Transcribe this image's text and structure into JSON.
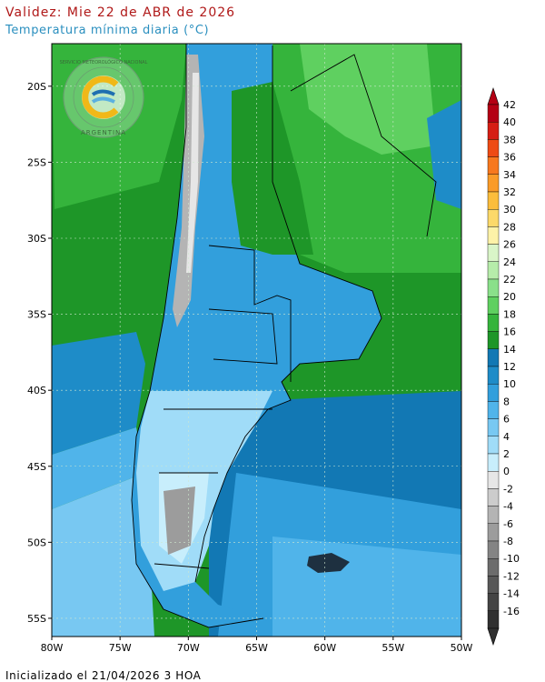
{
  "header": {
    "validity": "Validez: Mie 22 de ABR de 2026",
    "variable": "Temperatura mínima diaria (°C)"
  },
  "footer": {
    "initialized": "Inicializado el 21/04/2026 3 HOA"
  },
  "logo": {
    "ring_text_top": "SERVICIO METEOROLÓGICO NACIONAL",
    "ring_text_bottom": "ARGENTINA",
    "icon": "smn-logo"
  },
  "axes": {
    "lat_ticks": [
      {
        "lat": -20,
        "label": "20S"
      },
      {
        "lat": -25,
        "label": "25S"
      },
      {
        "lat": -30,
        "label": "30S"
      },
      {
        "lat": -35,
        "label": "35S"
      },
      {
        "lat": -40,
        "label": "40S"
      },
      {
        "lat": -45,
        "label": "45S"
      },
      {
        "lat": -50,
        "label": "50S"
      },
      {
        "lat": -55,
        "label": "55S"
      }
    ],
    "lon_ticks": [
      {
        "lon": -80,
        "label": "80W"
      },
      {
        "lon": -75,
        "label": "75W"
      },
      {
        "lon": -70,
        "label": "70W"
      },
      {
        "lon": -65,
        "label": "65W"
      },
      {
        "lon": -60,
        "label": "60W"
      },
      {
        "lon": -55,
        "label": "55W"
      },
      {
        "lon": -50,
        "label": "50W"
      }
    ]
  },
  "colorbar": {
    "levels": [
      {
        "label": "42",
        "color": "#b40014"
      },
      {
        "label": "40",
        "color": "#d61e14"
      },
      {
        "label": "38",
        "color": "#ee4b14"
      },
      {
        "label": "36",
        "color": "#f7781e"
      },
      {
        "label": "34",
        "color": "#fa9b28"
      },
      {
        "label": "32",
        "color": "#fbbd3c"
      },
      {
        "label": "30",
        "color": "#fcd96a"
      },
      {
        "label": "28",
        "color": "#fdf2a8"
      },
      {
        "label": "26",
        "color": "#d9f5c8"
      },
      {
        "label": "24",
        "color": "#b6ecaa"
      },
      {
        "label": "22",
        "color": "#8ae08a"
      },
      {
        "label": "20",
        "color": "#5fd060"
      },
      {
        "label": "18",
        "color": "#35b43c"
      },
      {
        "label": "16",
        "color": "#1e9628"
      },
      {
        "label": "14",
        "color": "#1278b4"
      },
      {
        "label": "12",
        "color": "#1e8cc8"
      },
      {
        "label": "10",
        "color": "#329fdc"
      },
      {
        "label": "8",
        "color": "#50b4ea"
      },
      {
        "label": "6",
        "color": "#78c8f2"
      },
      {
        "label": "4",
        "color": "#a0dcf8"
      },
      {
        "label": "2",
        "color": "#c8eefc"
      },
      {
        "label": "0",
        "color": "#e6e6e6"
      },
      {
        "label": "-2",
        "color": "#cccccc"
      },
      {
        "label": "-4",
        "color": "#b4b4b4"
      },
      {
        "label": "-6",
        "color": "#9c9c9c"
      },
      {
        "label": "-8",
        "color": "#848484"
      },
      {
        "label": "-10",
        "color": "#6c6c6c"
      },
      {
        "label": "-12",
        "color": "#585858"
      },
      {
        "label": "-14",
        "color": "#444444"
      },
      {
        "label": "-16",
        "color": "#303030"
      }
    ]
  },
  "map_colors": {
    "ocean_pacific": "#1e9628",
    "ocean_atlantic_north": "#35b43c",
    "ocean_atlantic_mid": "#1278b4",
    "ocean_south": "#50b4ea",
    "land_north": "#35b43c",
    "land_central": "#329fdc",
    "land_patagonia": "#a0dcf8",
    "andes_cold": "#b4b4b4"
  }
}
